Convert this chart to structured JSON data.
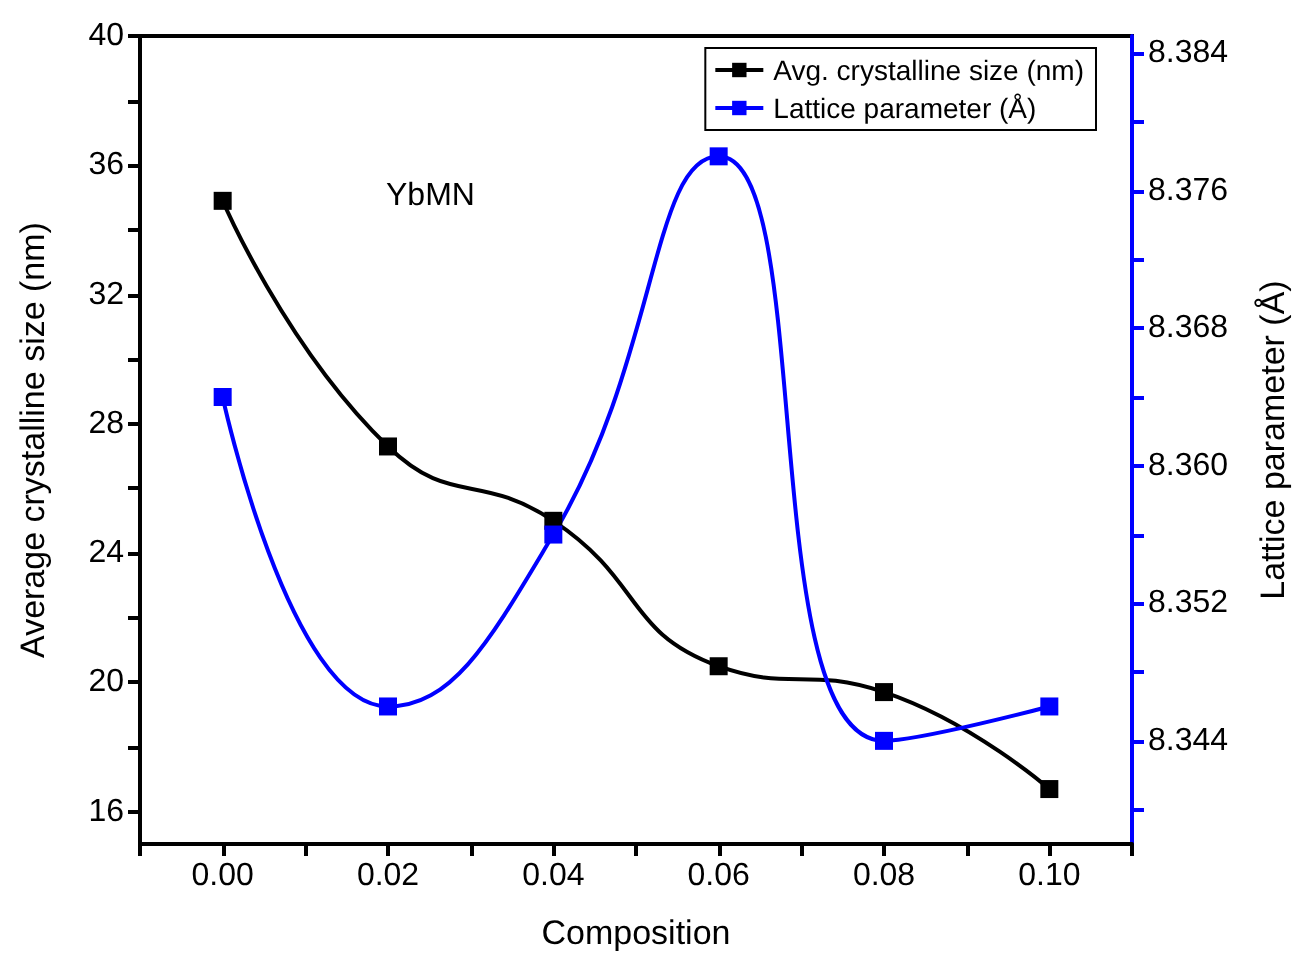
{
  "chart_data": {
    "type": "line",
    "xlabel": "Composition",
    "ylabel": "Average crystalline size (nm)",
    "y2label": "Lattice parameter (Å)",
    "annotations": [
      "YbMN"
    ],
    "x": [
      0,
      0.02,
      0.04,
      0.06,
      0.08,
      0.1
    ],
    "series": [
      {
        "name": "Avg. crystalline size (nm)",
        "color": "#000000",
        "values": [
          34.9,
          27.3,
          25.0,
          20.5,
          19.7,
          16.7
        ]
      },
      {
        "name": "Lattice parameter (Å)",
        "color": "#0000ff",
        "axis": "y2",
        "values": [
          8.364,
          8.346,
          8.356,
          8.378,
          8.344,
          8.346
        ]
      }
    ],
    "xlim": [
      -0.01,
      0.11
    ],
    "xticks": [
      {
        "value": -0.01,
        "label": null
      },
      {
        "value": 0,
        "label": "0.00"
      },
      {
        "value": 0.01,
        "label": null
      },
      0.02,
      {
        "value": 0.03,
        "label": null
      },
      0.04,
      {
        "value": 0.05,
        "label": null
      },
      0.06,
      {
        "value": 0.07,
        "label": null
      },
      0.08,
      {
        "value": 0.09,
        "label": null
      },
      {
        "value": 0.1,
        "label": "0.10"
      },
      {
        "value": 0.11,
        "label": null
      }
    ],
    "ylim": [
      15,
      40
    ],
    "yticks": [
      16,
      {
        "value": 18,
        "label": null
      },
      20,
      {
        "value": 22,
        "label": null
      },
      24,
      {
        "value": 26,
        "label": null
      },
      28,
      {
        "value": 30,
        "label": null
      },
      32,
      {
        "value": 34,
        "label": null
      },
      36,
      {
        "value": 38,
        "label": null
      },
      40
    ],
    "y2lim": [
      8.338,
      8.385
    ],
    "y2ticks": [
      {
        "value": 8.34,
        "label": null
      },
      8.344,
      {
        "value": 8.348,
        "label": null
      },
      8.352,
      {
        "value": 8.356,
        "label": null
      },
      {
        "value": 8.36,
        "label": "8.360"
      },
      {
        "value": 8.364,
        "label": null
      },
      8.368,
      {
        "value": 8.372,
        "label": null
      },
      8.376,
      {
        "value": 8.38,
        "label": null
      },
      8.384
    ],
    "legend": "top right",
    "grid": false,
    "marker": "square",
    "line_style": "solid"
  }
}
